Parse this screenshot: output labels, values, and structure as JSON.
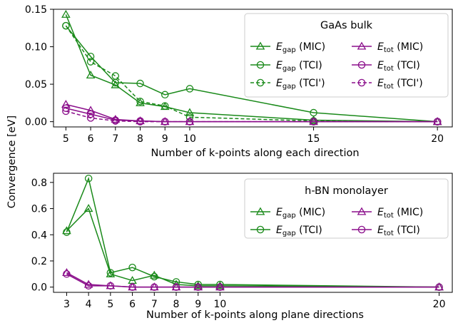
{
  "colors": {
    "gap": "#1a8a1a",
    "tot": "#8b0f8b"
  },
  "shared_ylabel": "Convergence [eV]",
  "chart_data": [
    {
      "type": "line",
      "panel": "top",
      "legend_title": "GaAs bulk",
      "legend_placement": "top-right",
      "xlabel": "Number of k-points along each direction",
      "xlim": [
        4.5,
        20.6
      ],
      "ylim": [
        -0.007,
        0.15
      ],
      "xticks": [
        5,
        6,
        7,
        8,
        9,
        10,
        15,
        20
      ],
      "yticks": [
        0.0,
        0.05,
        0.1,
        0.15
      ],
      "ytick_labels": [
        "0.00",
        "0.05",
        "0.10",
        "0.15"
      ],
      "grid": false,
      "series": [
        {
          "name": "E_gap (MIC)",
          "main": "E",
          "sub": "gap",
          "suffix": " (MIC)",
          "color": "gap",
          "marker": "triangle",
          "dash": false,
          "x": [
            5,
            6,
            7,
            8,
            9,
            10,
            15,
            20
          ],
          "y": [
            0.143,
            0.062,
            0.049,
            0.025,
            0.02,
            0.012,
            0.002,
            0.0
          ]
        },
        {
          "name": "E_gap (TCI)",
          "main": "E",
          "sub": "gap",
          "suffix": " (TCI)",
          "color": "gap",
          "marker": "circle",
          "dash": false,
          "x": [
            5,
            6,
            7,
            8,
            9,
            10,
            15,
            20
          ],
          "y": [
            0.128,
            0.087,
            0.052,
            0.051,
            0.036,
            0.044,
            0.012,
            0.0
          ]
        },
        {
          "name": "E_gap (TCI')",
          "main": "E",
          "sub": "gap",
          "suffix": " (TCI')",
          "color": "gap",
          "marker": "circle",
          "dash": true,
          "x": [
            5,
            6,
            7,
            8,
            9,
            10,
            15,
            20
          ],
          "y": [
            0.128,
            0.08,
            0.061,
            0.027,
            0.021,
            0.006,
            0.001,
            0.0
          ]
        },
        {
          "name": "E_tot (MIC)",
          "main": "E",
          "sub": "tot",
          "suffix": " (MIC)",
          "color": "tot",
          "marker": "triangle",
          "dash": false,
          "x": [
            5,
            6,
            7,
            8,
            9,
            10,
            15,
            20
          ],
          "y": [
            0.023,
            0.015,
            0.003,
            0.001,
            0.0,
            0.0,
            0.0,
            0.0
          ]
        },
        {
          "name": "E_tot (TCI)",
          "main": "E",
          "sub": "tot",
          "suffix": " (TCI)",
          "color": "tot",
          "marker": "circle",
          "dash": false,
          "x": [
            5,
            6,
            7,
            8,
            9,
            10,
            15,
            20
          ],
          "y": [
            0.018,
            0.01,
            0.002,
            0.001,
            0.0,
            0.0,
            0.0,
            0.0
          ]
        },
        {
          "name": "E_tot (TCI')",
          "main": "E",
          "sub": "tot",
          "suffix": " (TCI')",
          "color": "tot",
          "marker": "circle",
          "dash": true,
          "x": [
            5,
            6,
            7,
            8,
            9,
            10,
            15,
            20
          ],
          "y": [
            0.014,
            0.005,
            0.001,
            0.0,
            0.0,
            0.0,
            0.0,
            0.0
          ]
        }
      ]
    },
    {
      "type": "line",
      "panel": "bottom",
      "legend_title": "h-BN monolayer",
      "legend_placement": "top-right",
      "xlabel": "Number of k-points along plane directions",
      "xlim": [
        2.4,
        20.6
      ],
      "ylim": [
        -0.04,
        0.87
      ],
      "xticks": [
        3,
        4,
        5,
        6,
        7,
        8,
        9,
        10,
        20
      ],
      "yticks": [
        0.0,
        0.2,
        0.4,
        0.6,
        0.8
      ],
      "ytick_labels": [
        "0.0",
        "0.2",
        "0.4",
        "0.6",
        "0.8"
      ],
      "grid": false,
      "series": [
        {
          "name": "E_gap (MIC)",
          "main": "E",
          "sub": "gap",
          "suffix": " (MIC)",
          "color": "gap",
          "marker": "triangle",
          "dash": false,
          "x": [
            3,
            4,
            5,
            6,
            7,
            8,
            9,
            10,
            20
          ],
          "y": [
            0.43,
            0.6,
            0.1,
            0.05,
            0.09,
            0.02,
            0.01,
            0.01,
            0.0
          ]
        },
        {
          "name": "E_gap (TCI)",
          "main": "E",
          "sub": "gap",
          "suffix": " (TCI)",
          "color": "gap",
          "marker": "circle",
          "dash": false,
          "x": [
            3,
            4,
            5,
            6,
            7,
            8,
            9,
            10,
            20
          ],
          "y": [
            0.42,
            0.83,
            0.11,
            0.15,
            0.08,
            0.04,
            0.02,
            0.02,
            0.0
          ]
        },
        {
          "name": "E_tot (MIC)",
          "main": "E",
          "sub": "tot",
          "suffix": " (MIC)",
          "color": "tot",
          "marker": "triangle",
          "dash": false,
          "x": [
            3,
            4,
            5,
            6,
            7,
            8,
            9,
            10,
            20
          ],
          "y": [
            0.11,
            0.02,
            0.01,
            0.0,
            0.0,
            0.0,
            0.0,
            0.0,
            0.0
          ]
        },
        {
          "name": "E_tot (TCI)",
          "main": "E",
          "sub": "tot",
          "suffix": " (TCI)",
          "color": "tot",
          "marker": "circle",
          "dash": false,
          "x": [
            3,
            4,
            5,
            6,
            7,
            8,
            9,
            10,
            20
          ],
          "y": [
            0.1,
            0.01,
            0.01,
            0.0,
            0.0,
            0.0,
            0.0,
            0.0,
            0.0
          ]
        }
      ]
    }
  ]
}
